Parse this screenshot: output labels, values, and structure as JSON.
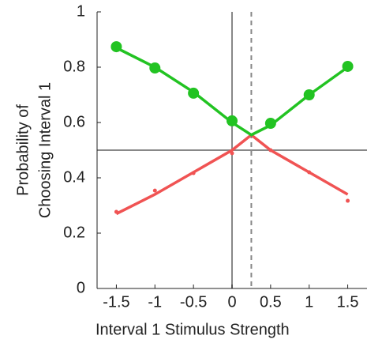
{
  "chart_data": {
    "type": "line",
    "x_label": "Interval 1 Stimulus Strength",
    "y_label": [
      "Probability of",
      "Choosing Interval 1"
    ],
    "xlim": [
      -1.75,
      1.75
    ],
    "ylim": [
      0,
      1
    ],
    "xticks": [
      -1.5,
      -1,
      -0.5,
      0,
      0.5,
      1,
      1.5
    ],
    "yticks": [
      0,
      0.2,
      0.4,
      0.6,
      0.8,
      1
    ],
    "reference_lines": [
      {
        "axis": "y",
        "value": 0.5,
        "dashed": false
      },
      {
        "axis": "x",
        "value": 0,
        "dashed": false
      },
      {
        "axis": "x",
        "value": 0.25,
        "dashed": true
      }
    ],
    "series": [
      {
        "color": "#f05353",
        "style": "line",
        "x": [
          -1.5,
          -1,
          -0.5,
          0,
          0.25,
          0.5,
          1,
          1.5
        ],
        "values": [
          0.27,
          0.34,
          0.42,
          0.5,
          0.555,
          0.5,
          0.42,
          0.34
        ]
      },
      {
        "color": "#f05353",
        "style": "small-markers",
        "x": [
          -1.5,
          -1,
          -0.5,
          0,
          0.5,
          1,
          1.5
        ],
        "values": [
          0.277,
          0.354,
          0.417,
          0.489,
          0.5,
          0.42,
          0.317
        ]
      },
      {
        "color": "#22c322",
        "style": "line",
        "x": [
          -1.5,
          -1,
          -0.5,
          0,
          0.25,
          0.5,
          1,
          1.5
        ],
        "values": [
          0.87,
          0.8,
          0.71,
          0.6,
          0.555,
          0.59,
          0.7,
          0.8
        ]
      },
      {
        "color": "#22c322",
        "style": "large-markers",
        "x": [
          -1.5,
          -1,
          -0.5,
          0,
          0.5,
          1,
          1.5
        ],
        "values": [
          0.874,
          0.797,
          0.706,
          0.606,
          0.597,
          0.7,
          0.803
        ]
      }
    ]
  }
}
